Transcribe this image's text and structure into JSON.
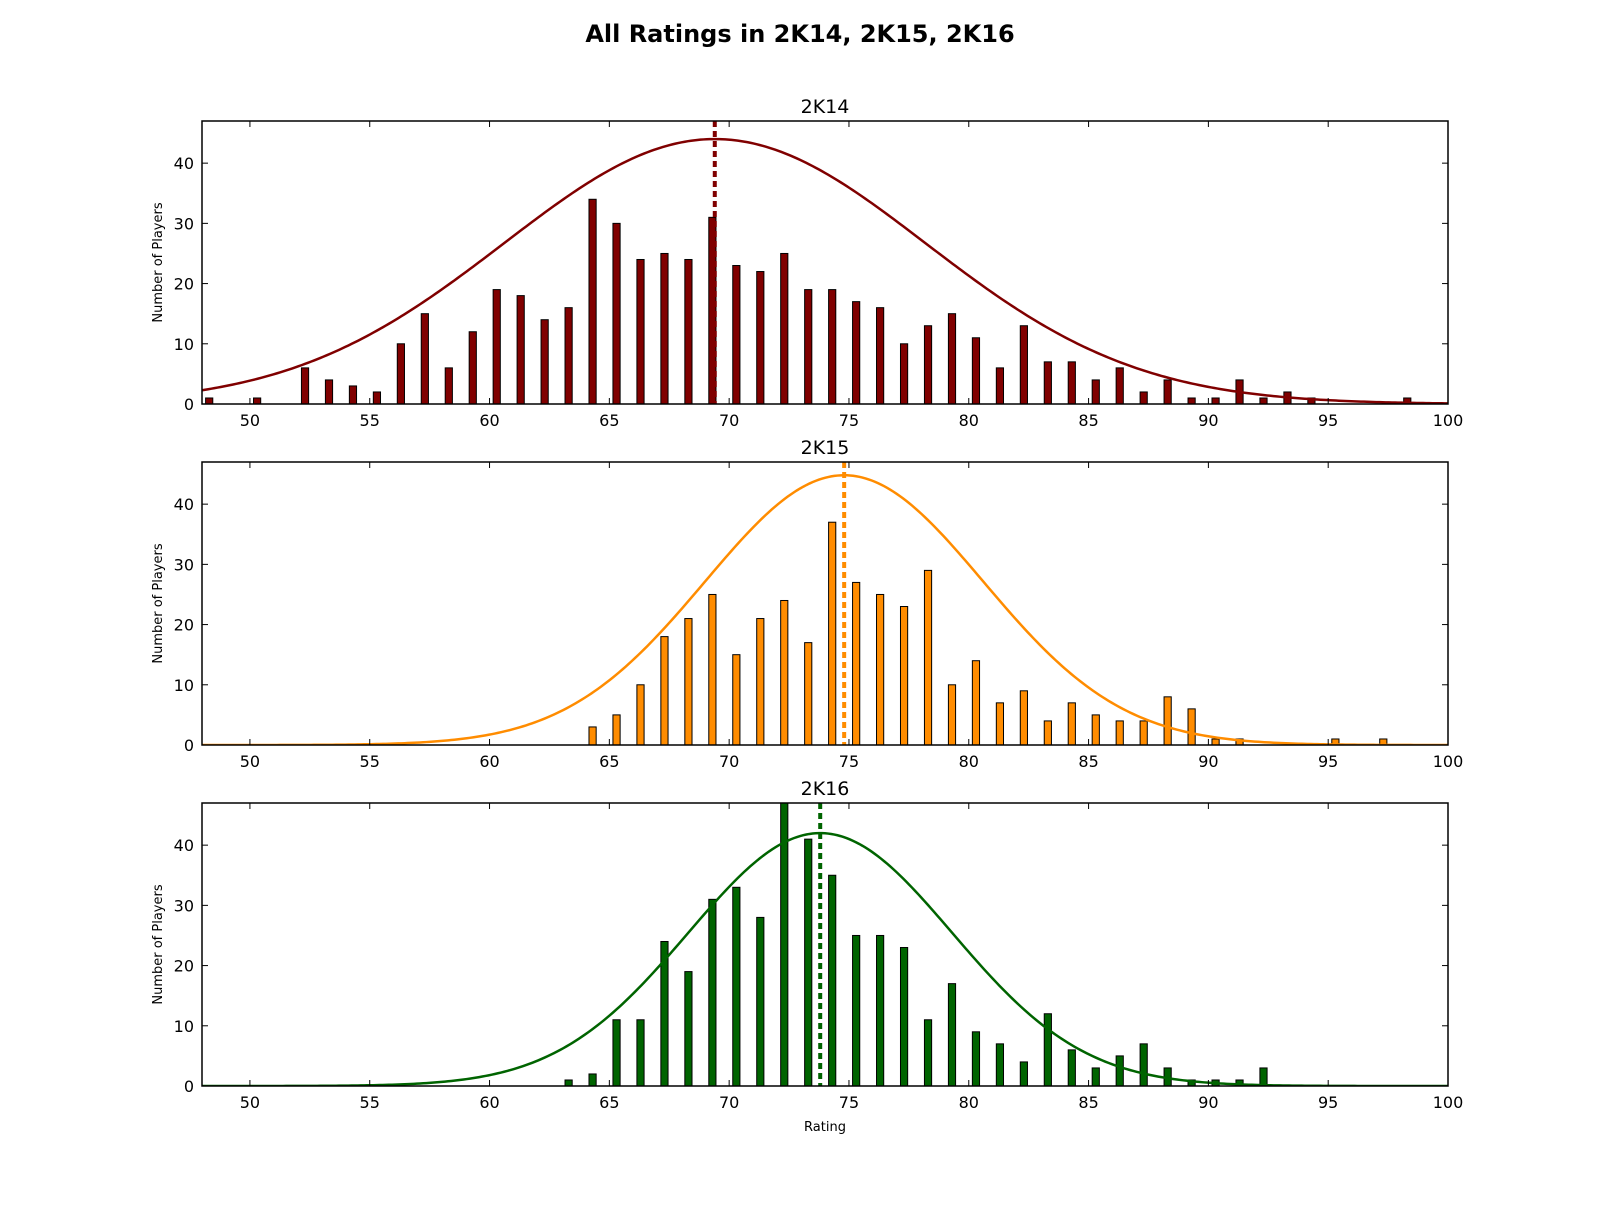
{
  "figure": {
    "title": "All Ratings in 2K14, 2K15, 2K16"
  },
  "chart_data": [
    {
      "type": "bar",
      "title": "2K14",
      "xlabel": "",
      "ylabel": "Number of Players",
      "xlim": [
        48,
        100
      ],
      "ylim": [
        0,
        47
      ],
      "xticks": [
        50,
        55,
        60,
        65,
        70,
        75,
        80,
        85,
        90,
        95,
        100
      ],
      "yticks": [
        0,
        10,
        20,
        30,
        40
      ],
      "color": "#800000",
      "x": [
        48,
        50,
        52,
        53,
        54,
        55,
        56,
        57,
        58,
        59,
        60,
        61,
        62,
        63,
        64,
        65,
        66,
        67,
        68,
        69,
        70,
        71,
        72,
        73,
        74,
        75,
        76,
        77,
        78,
        79,
        80,
        81,
        82,
        83,
        84,
        85,
        86,
        87,
        88,
        89,
        90,
        91,
        92,
        93,
        94,
        98
      ],
      "values": [
        1,
        1,
        6,
        4,
        3,
        2,
        10,
        15,
        6,
        12,
        19,
        18,
        14,
        16,
        34,
        30,
        24,
        25,
        24,
        31,
        23,
        22,
        25,
        19,
        19,
        17,
        16,
        10,
        13,
        15,
        11,
        6,
        13,
        7,
        7,
        4,
        6,
        2,
        4,
        1,
        1,
        4,
        1,
        2,
        1,
        1
      ],
      "fit_curve": {
        "mean": 69.4,
        "std": 8.8,
        "peak": 44
      },
      "mean_line": 69.4
    },
    {
      "type": "bar",
      "title": "2K15",
      "xlabel": "",
      "ylabel": "Number of Players",
      "xlim": [
        48,
        100
      ],
      "ylim": [
        0,
        47
      ],
      "xticks": [
        50,
        55,
        60,
        65,
        70,
        75,
        80,
        85,
        90,
        95,
        100
      ],
      "yticks": [
        0,
        10,
        20,
        30,
        40
      ],
      "color": "#ff8c00",
      "x": [
        64,
        65,
        66,
        67,
        68,
        69,
        70,
        71,
        72,
        73,
        74,
        75,
        76,
        77,
        78,
        79,
        80,
        81,
        82,
        83,
        84,
        85,
        86,
        87,
        88,
        89,
        90,
        91,
        95,
        97
      ],
      "values": [
        3,
        5,
        10,
        18,
        21,
        25,
        15,
        21,
        24,
        17,
        37,
        27,
        25,
        23,
        29,
        10,
        14,
        7,
        9,
        4,
        7,
        5,
        4,
        4,
        8,
        6,
        1,
        1,
        1,
        1
      ],
      "fit_curve": {
        "mean": 74.8,
        "std": 5.8,
        "peak": 44.8
      },
      "mean_line": 74.8
    },
    {
      "type": "bar",
      "title": "2K16",
      "xlabel": "Rating",
      "ylabel": "Number of Players",
      "xlim": [
        48,
        100
      ],
      "ylim": [
        0,
        47
      ],
      "xticks": [
        50,
        55,
        60,
        65,
        70,
        75,
        80,
        85,
        90,
        95,
        100
      ],
      "yticks": [
        0,
        10,
        20,
        30,
        40
      ],
      "color": "#006400",
      "x": [
        63,
        64,
        65,
        66,
        67,
        68,
        69,
        70,
        71,
        72,
        73,
        74,
        75,
        76,
        77,
        78,
        79,
        80,
        81,
        82,
        83,
        84,
        85,
        86,
        87,
        88,
        89,
        90,
        91,
        92
      ],
      "values": [
        1,
        2,
        11,
        11,
        24,
        19,
        31,
        33,
        28,
        48,
        41,
        35,
        25,
        25,
        23,
        11,
        17,
        9,
        7,
        4,
        12,
        6,
        3,
        5,
        7,
        3,
        1,
        1,
        1,
        3
      ],
      "fit_curve": {
        "mean": 73.8,
        "std": 5.5,
        "peak": 42
      },
      "mean_line": 73.8
    }
  ]
}
